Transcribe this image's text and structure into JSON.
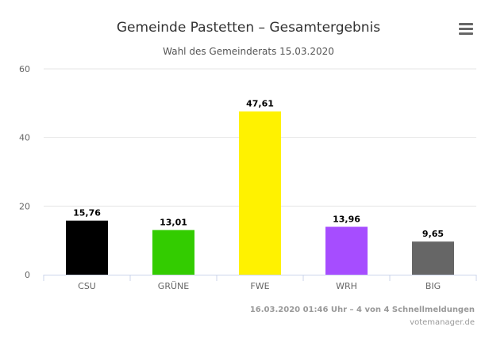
{
  "chart_data": {
    "type": "bar",
    "title": "Gemeinde Pastetten – Gesamtergebnis",
    "subtitle": "Wahl des Gemeinderats 15.03.2020",
    "categories": [
      "CSU",
      "GRÜNE",
      "FWE",
      "WRH",
      "BIG"
    ],
    "values": [
      15.76,
      13.01,
      47.61,
      13.96,
      9.65
    ],
    "data_labels": [
      "15,76",
      "13,01",
      "47,61",
      "13,96",
      "9,65"
    ],
    "colors": [
      "#000000",
      "#33cc00",
      "#fff200",
      "#a64dff",
      "#666666"
    ],
    "ylim": [
      0,
      60
    ],
    "yticks": [
      "0",
      "20",
      "40",
      "60"
    ],
    "xlabel": "",
    "ylabel": "",
    "grid": true,
    "legend": "none"
  },
  "footer": {
    "status": "16.03.2020 01:46 Uhr – 4 von 4 Schnellmeldungen",
    "source": "votemanager.de"
  },
  "menu": {
    "icon": "hamburger-menu-icon"
  }
}
